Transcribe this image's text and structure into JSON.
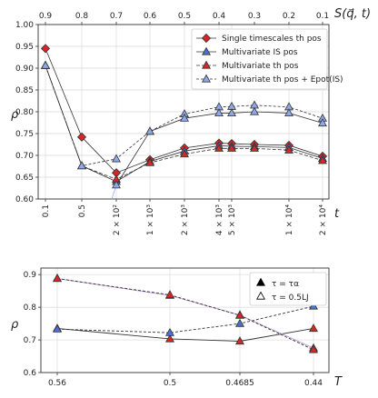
{
  "chart_data": [
    {
      "type": "line",
      "ylabel": "ρ",
      "xlabel": "t",
      "xlabel_top": "S(q⃗, t)",
      "ylim": [
        0.6,
        1.0
      ],
      "yticks": [
        "0.60",
        "0.65",
        "0.70",
        "0.75",
        "0.80",
        "0.85",
        "0.90",
        "0.95",
        "1.00"
      ],
      "x_tick_labels": [
        "0.1",
        "0.5",
        "2 × 10²",
        "1 × 10³",
        "2 × 10³",
        "4 × 10³",
        "5 × 10³",
        "1 × 10⁴",
        "2 × 10⁴"
      ],
      "x_top_tick_labels": [
        "0.9",
        "0.8",
        "0.7",
        "0.6",
        "0.5",
        "0.4",
        "0.3",
        "0.2",
        "0.1"
      ],
      "grid": true,
      "legend_position": "top-right",
      "series": [
        {
          "name": "Single timescales th pos",
          "marker": "diamond",
          "color": "#d62728",
          "dash": "",
          "x": [
            0.1,
            0.5,
            200,
            1000,
            2000,
            4000,
            5000,
            7000,
            10000,
            20000
          ],
          "values": [
            0.945,
            0.742,
            0.66,
            0.69,
            0.717,
            0.728,
            0.727,
            0.725,
            0.723,
            0.698
          ]
        },
        {
          "name": "Multivariate IS pos",
          "marker": "triangle",
          "color": "#4c6fd1",
          "dash": "",
          "x": [
            0.1,
            0.5,
            200,
            1000,
            2000,
            4000,
            5000,
            7000,
            10000,
            20000
          ],
          "values": [
            0.906,
            0.676,
            0.64,
            0.686,
            0.71,
            0.722,
            0.721,
            0.72,
            0.718,
            0.693
          ]
        },
        {
          "name": "Multivariate th pos",
          "marker": "triangle",
          "color": "#d62728",
          "dash": "4 2",
          "x": [
            0.1,
            0.5,
            200,
            1000,
            2000,
            4000,
            5000,
            7000,
            10000,
            20000
          ],
          "values": [
            0.906,
            0.676,
            0.645,
            0.683,
            0.703,
            0.716,
            0.716,
            0.716,
            0.712,
            0.688
          ]
        },
        {
          "name": "Multivariate th pos + Epot(IS)",
          "marker": "triangle",
          "color": "#8fa8e6",
          "dash": "3 2",
          "x": [
            0.1,
            0.5,
            200,
            1000,
            2000,
            4000,
            5000,
            7000,
            10000,
            20000
          ],
          "values": [
            0.906,
            0.676,
            0.692,
            0.755,
            0.795,
            0.811,
            0.812,
            0.815,
            0.811,
            0.785
          ]
        },
        {
          "name": "",
          "marker": "triangle",
          "color": "#8fa8e6",
          "dash": "",
          "x": [
            200,
            1000,
            2000,
            4000,
            5000,
            7000,
            10000,
            20000
          ],
          "values": [
            0.632,
            0.755,
            0.785,
            0.797,
            0.797,
            0.8,
            0.797,
            0.774
          ]
        }
      ]
    },
    {
      "type": "line",
      "ylabel": "ρ",
      "xlabel": "T",
      "ylim": [
        0.6,
        0.92
      ],
      "yticks": [
        "0.6",
        "0.7",
        "0.8",
        "0.9"
      ],
      "x_tick_labels": [
        "0.56",
        "0.5",
        "0.4685",
        "0.44"
      ],
      "grid": true,
      "legend_position": "top-right",
      "legend": [
        {
          "marker": "filled-triangle",
          "label": "τ = τα"
        },
        {
          "marker": "open-triangle",
          "label": "τ = 0.5LJ"
        }
      ],
      "series": [
        {
          "marker": "filled-triangle",
          "color": "#d62728",
          "dash": "",
          "values": [
            0.735,
            0.703,
            0.696,
            0.735
          ]
        },
        {
          "marker": "open-triangle",
          "color": "#4c6fd1",
          "dash": "3 2",
          "values": [
            0.733,
            0.722,
            0.75,
            0.803
          ]
        },
        {
          "marker": "open-triangle",
          "color": "#c09ad8",
          "dash": "",
          "values": [
            0.888,
            0.836,
            0.776,
            0.675
          ]
        },
        {
          "marker": "open-triangle",
          "color": "#d62728",
          "dash": "3 2",
          "values": [
            0.888,
            0.838,
            0.775,
            0.67
          ]
        }
      ]
    }
  ]
}
